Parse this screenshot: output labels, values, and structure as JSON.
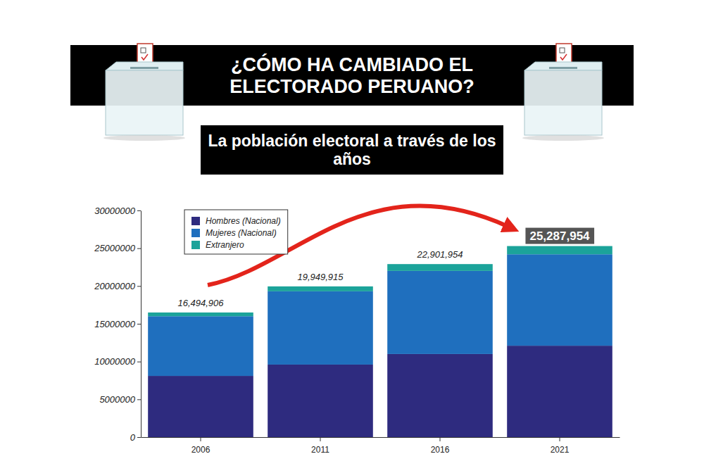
{
  "chart_data": {
    "type": "bar",
    "stacked": true,
    "title": "¿CÓMO HA CAMBIADO EL ELECTORADO PERUANO?",
    "subtitle": "La población electoral a través de los años",
    "categories": [
      "2006",
      "2011",
      "2016",
      "2021"
    ],
    "series": [
      {
        "name": "Hombres (Nacional)",
        "color": "#2e2b7f",
        "values": [
          8100000,
          9600000,
          11000000,
          12100000
        ]
      },
      {
        "name": "Mujeres (Nacional)",
        "color": "#1f6fbe",
        "values": [
          7900000,
          9700000,
          11000000,
          12100000
        ]
      },
      {
        "name": "Extranjero",
        "color": "#1ba39a",
        "values": [
          494906,
          649915,
          901954,
          1087954
        ]
      }
    ],
    "totals": [
      16494906,
      19949915,
      22901954,
      25287954
    ],
    "total_labels": [
      "16,494,906",
      "19,949,915",
      "22,901,954",
      "25,287,954"
    ],
    "ylim": [
      0,
      30000000
    ],
    "yticks": [
      0,
      5000000,
      10000000,
      15000000,
      20000000,
      25000000,
      30000000
    ],
    "legend": "top-left",
    "grid": false
  }
}
